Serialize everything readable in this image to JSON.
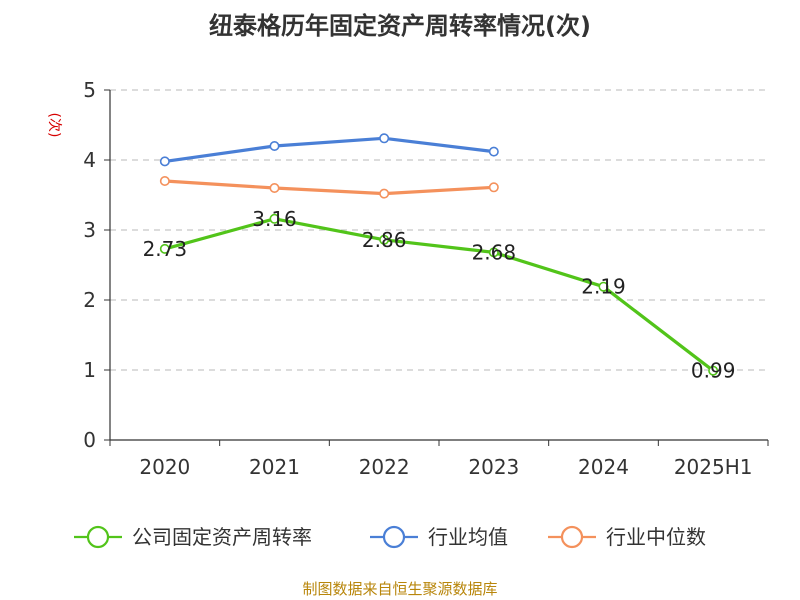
{
  "chart_data": {
    "type": "line",
    "title": "纽泰格历年固定资产周转率情况(次)",
    "ylabel": "(次)",
    "xlabel": "",
    "categories": [
      "2020",
      "2021",
      "2022",
      "2023",
      "2024",
      "2025H1"
    ],
    "ylim": [
      0,
      5
    ],
    "yticks": [
      0,
      1,
      2,
      3,
      4,
      5
    ],
    "grid": true,
    "legend_position": "bottom",
    "series": [
      {
        "name": "公司固定资产周转率",
        "values": [
          2.73,
          3.16,
          2.86,
          2.68,
          2.19,
          0.99
        ],
        "color": "#52c41a",
        "labeled": true
      },
      {
        "name": "行业均值",
        "values": [
          3.98,
          4.2,
          4.31,
          4.12,
          null,
          null
        ],
        "color": "#4a7fd6",
        "labeled": false
      },
      {
        "name": "行业中位数",
        "values": [
          3.7,
          3.6,
          3.52,
          3.61,
          null,
          null
        ],
        "color": "#f4915c",
        "labeled": false
      }
    ]
  },
  "source": "制图数据来自恒生聚源数据库"
}
